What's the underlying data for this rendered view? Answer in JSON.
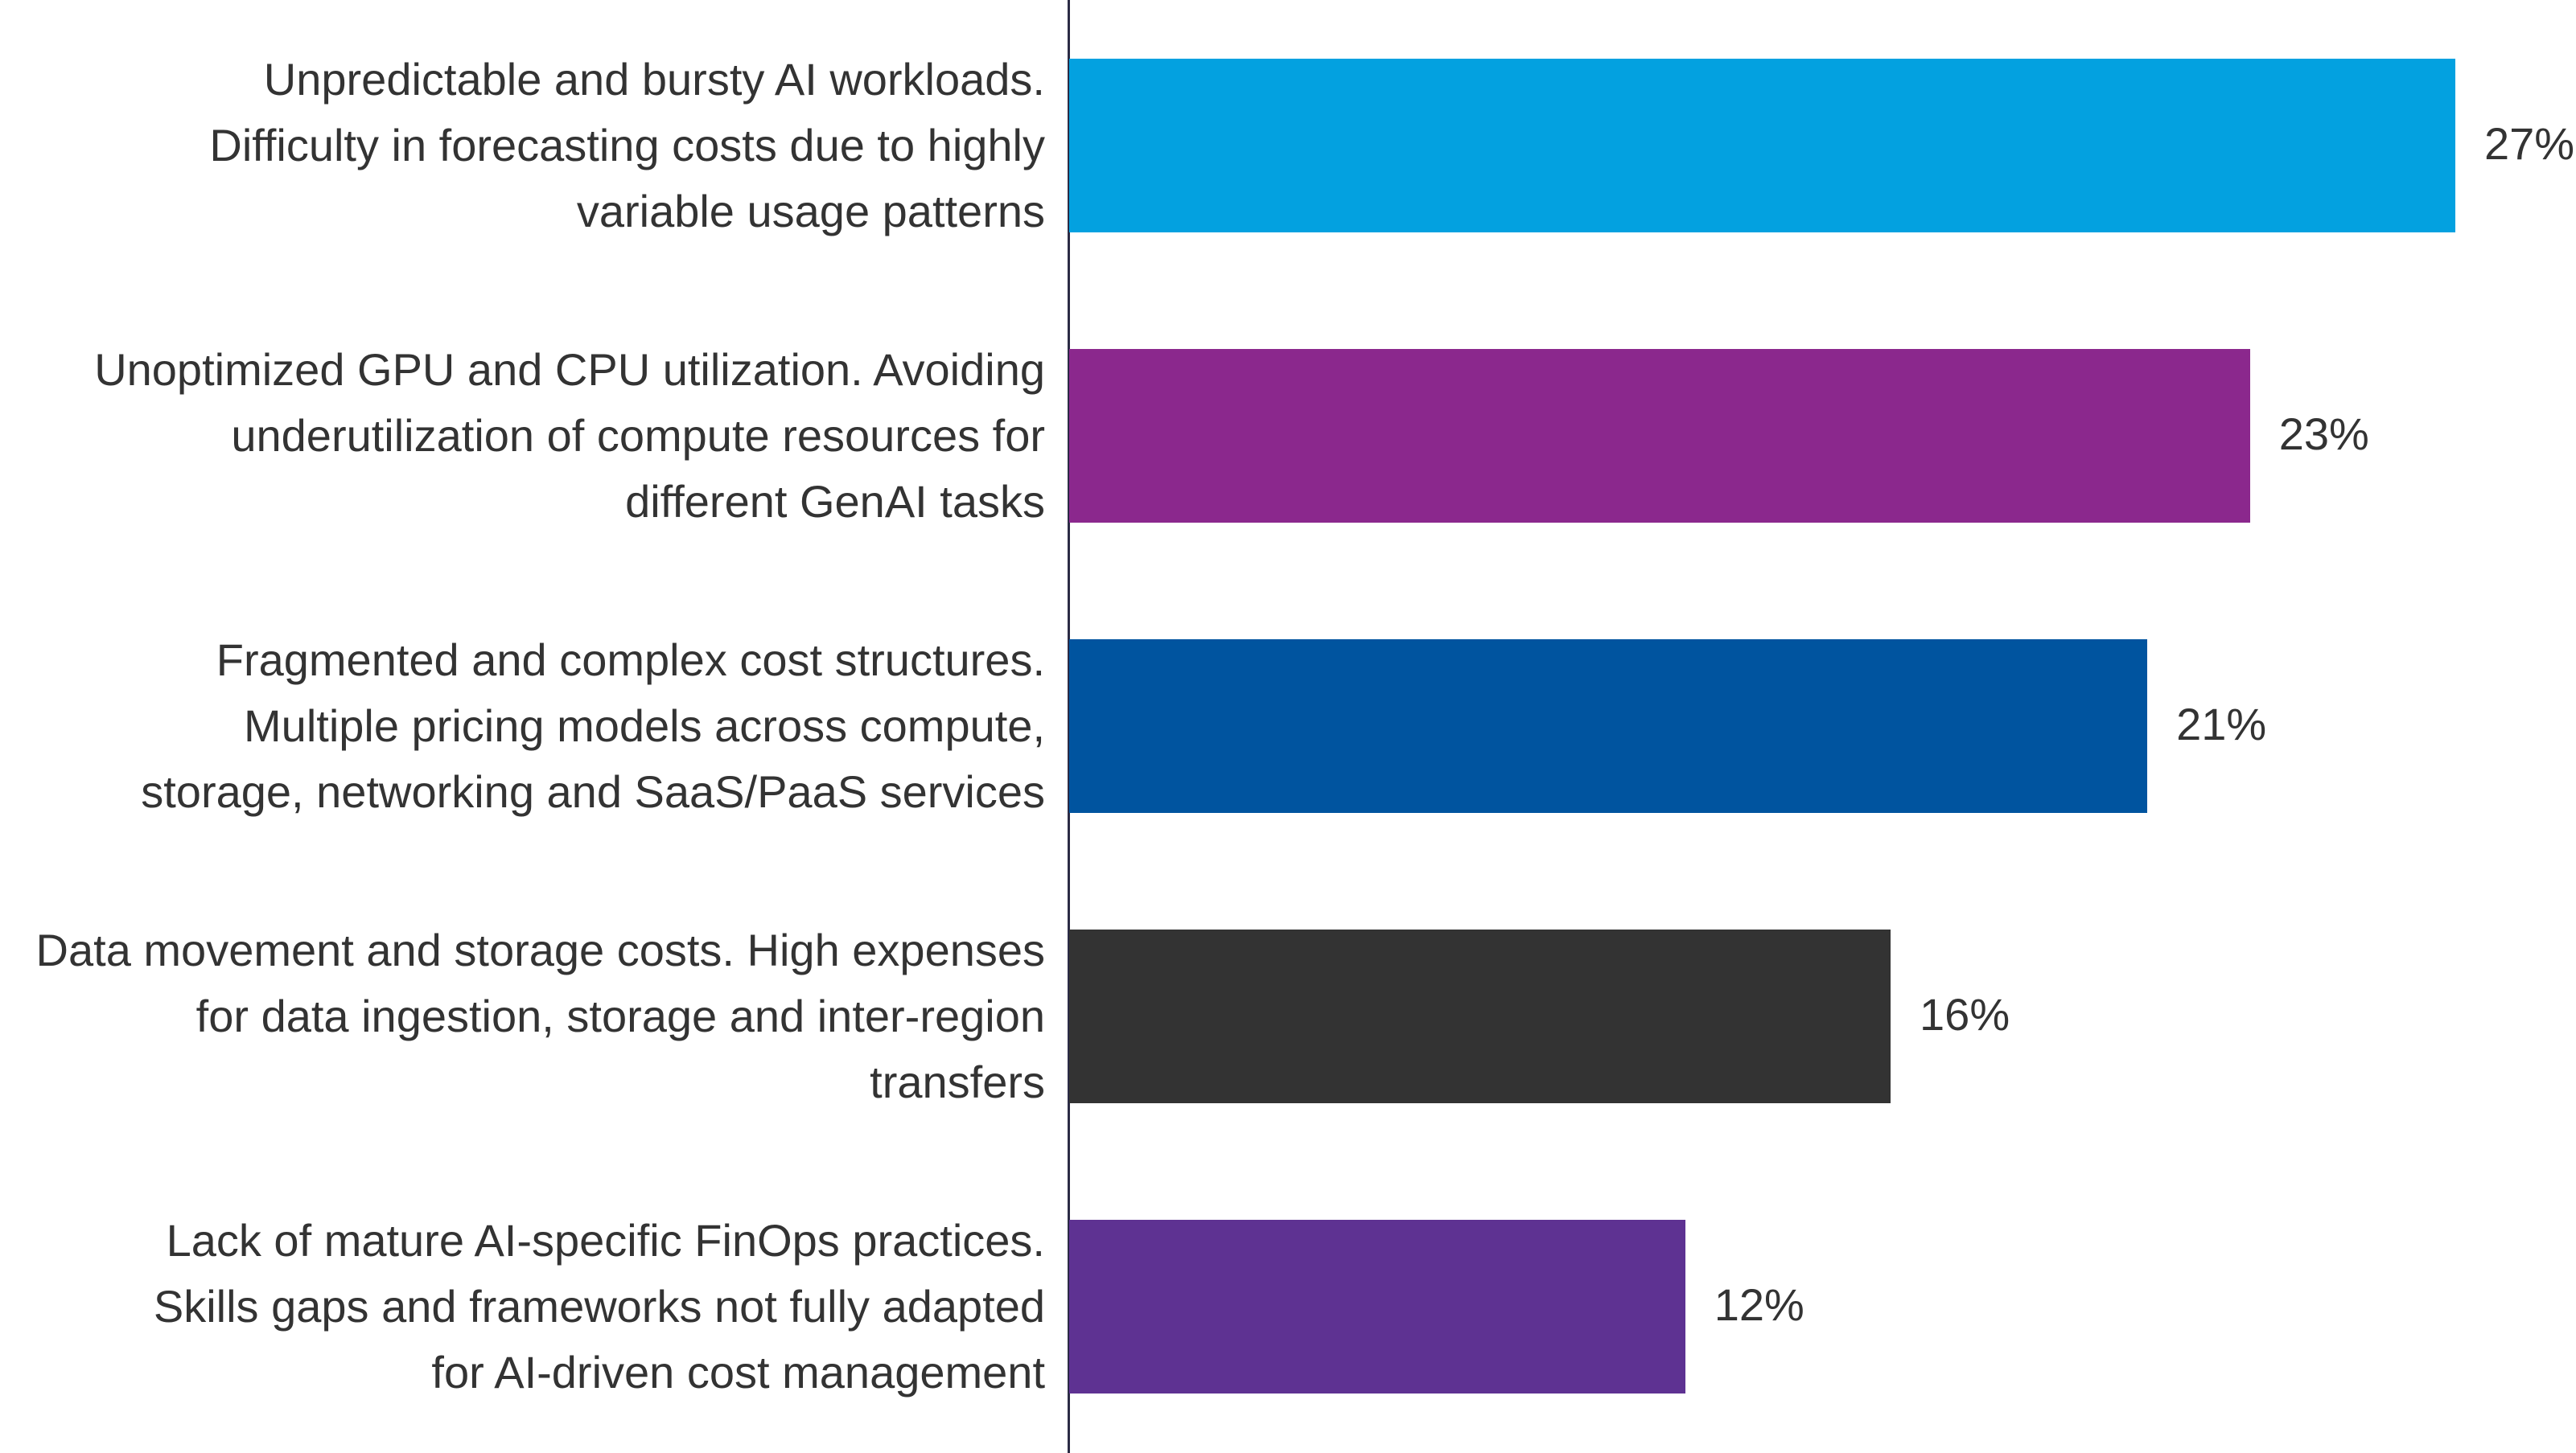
{
  "chart_data": {
    "type": "bar",
    "orientation": "horizontal",
    "categories": [
      [
        "Unpredictable and bursty AI workloads.",
        "Difficulty in forecasting costs due to highly",
        "variable usage patterns"
      ],
      [
        "Unoptimized GPU and CPU utilization. Avoiding",
        "underutilization of compute resources for",
        "different GenAI tasks"
      ],
      [
        "Fragmented and complex cost structures.",
        "Multiple pricing models across compute,",
        "storage, networking and SaaS/PaaS services"
      ],
      [
        "Data movement and storage costs. High expenses",
        "for data ingestion, storage and inter-region",
        "transfers"
      ],
      [
        "Lack of mature AI-specific FinOps practices.",
        "Skills gaps and frameworks not fully adapted",
        "for AI-driven cost management"
      ]
    ],
    "values": [
      27,
      23,
      21,
      16,
      12
    ],
    "value_labels": [
      "27%",
      "23%",
      "21%",
      "16%",
      "12%"
    ],
    "colors": [
      "#03A1E0",
      "#8B288D",
      "#00549F",
      "#333333",
      "#5E3292"
    ],
    "unit": "%",
    "xlim": [
      0,
      27
    ],
    "grid": false,
    "legend": "none",
    "title": "",
    "xlabel": "",
    "ylabel": ""
  }
}
